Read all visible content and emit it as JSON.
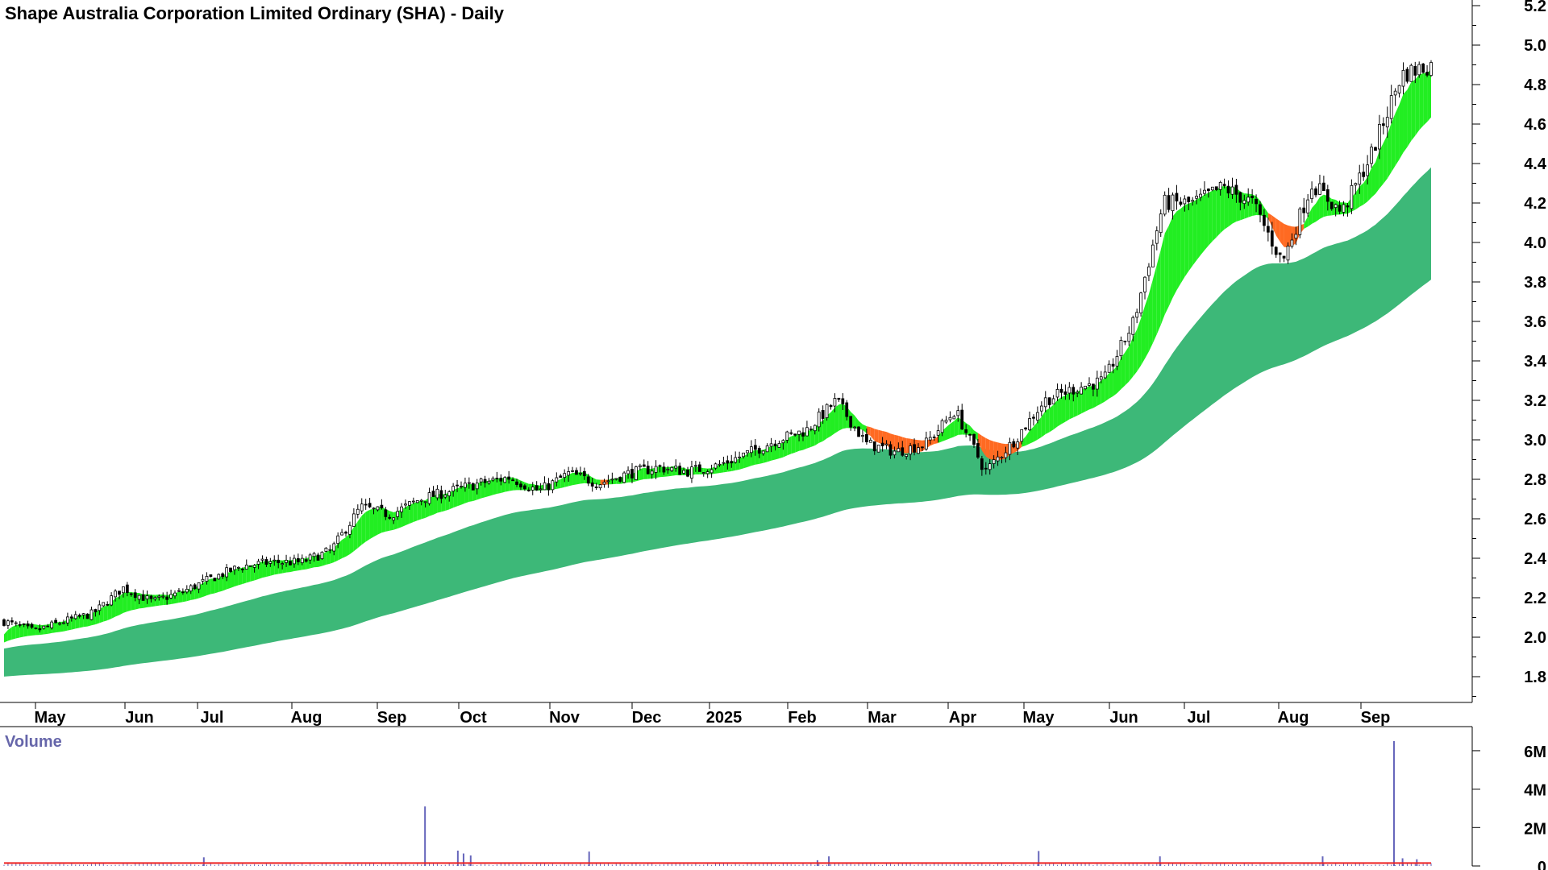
{
  "chart_data": {
    "type": "candlestick",
    "title": "Shape Australia Corporation Limited Ordinary (SHA) - Daily",
    "price_axis": {
      "ticks": [
        "5.2",
        "5.0",
        "4.8",
        "4.6",
        "4.4",
        "4.2",
        "4.0",
        "3.8",
        "3.6",
        "3.4",
        "3.2",
        "3.0",
        "2.8",
        "2.6",
        "2.4",
        "2.2",
        "2.0",
        "1.8"
      ],
      "range": [
        1.65,
        5.25
      ]
    },
    "months": [
      "May",
      "Jun",
      "Jul",
      "Aug",
      "Sep",
      "Oct",
      "Nov",
      "Dec",
      "2025",
      "Feb",
      "Mar",
      "Apr",
      "May",
      "Jun",
      "Jul",
      "Aug",
      "Sep"
    ],
    "price_path": [
      2.08,
      2.03,
      2.08,
      2.12,
      2.25,
      2.18,
      2.23,
      2.3,
      2.36,
      2.38,
      2.38,
      2.44,
      2.66,
      2.62,
      2.7,
      2.74,
      2.78,
      2.81,
      2.74,
      2.83,
      2.78,
      2.83,
      2.86,
      2.84,
      2.87,
      2.93,
      3.0,
      3.05,
      3.2,
      2.98,
      2.94,
      2.98,
      3.15,
      2.84,
      3.0,
      3.2,
      3.26,
      3.3,
      3.6,
      4.2,
      4.2,
      4.28,
      4.2,
      3.9,
      4.3,
      4.15,
      4.45,
      4.85,
      4.9
    ],
    "ema_fast_series": {
      "colors": {
        "up": "#22ee22",
        "down": "#ff6a22"
      }
    },
    "ema_slow_series": {
      "color": "#3db878"
    },
    "volume": {
      "label": "Volume",
      "ticks": [
        "6M",
        "4M",
        "2M",
        "0"
      ],
      "max": 6500000,
      "bar_color": "#6666bb",
      "avg_line_color": "#ee2222",
      "spikes": [
        {
          "pos": 0.14,
          "v": 450000
        },
        {
          "pos": 0.295,
          "v": 3100000
        },
        {
          "pos": 0.318,
          "v": 800000
        },
        {
          "pos": 0.322,
          "v": 650000
        },
        {
          "pos": 0.327,
          "v": 550000
        },
        {
          "pos": 0.41,
          "v": 750000
        },
        {
          "pos": 0.57,
          "v": 300000
        },
        {
          "pos": 0.578,
          "v": 500000
        },
        {
          "pos": 0.725,
          "v": 780000
        },
        {
          "pos": 0.81,
          "v": 500000
        },
        {
          "pos": 0.924,
          "v": 500000
        },
        {
          "pos": 0.974,
          "v": 6500000
        },
        {
          "pos": 0.98,
          "v": 400000
        },
        {
          "pos": 0.99,
          "v": 350000
        }
      ]
    }
  }
}
